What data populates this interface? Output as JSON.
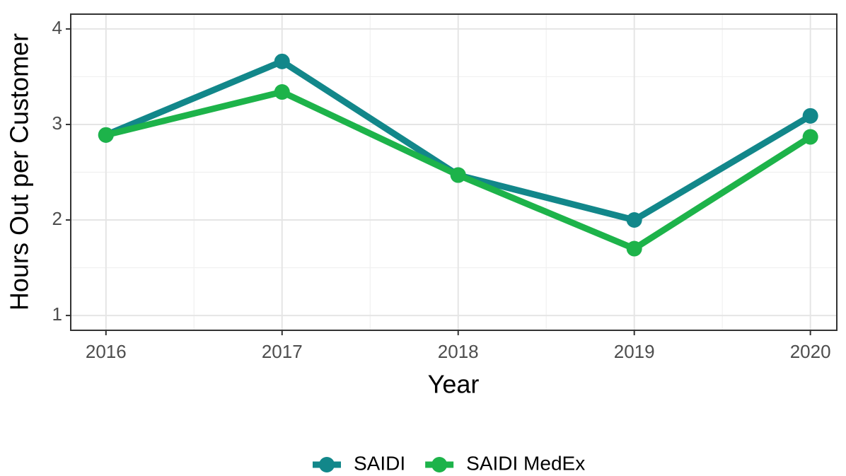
{
  "chart_data": {
    "type": "line",
    "xlabel": "Year",
    "ylabel": "Hours Out per Customer",
    "x": [
      2016,
      2017,
      2018,
      2019,
      2020
    ],
    "series": [
      {
        "name": "SAIDI",
        "color": "#12878a",
        "values": [
          2.89,
          3.66,
          2.47,
          2.0,
          3.09
        ]
      },
      {
        "name": "SAIDI MedEx",
        "color": "#1db34a",
        "values": [
          2.89,
          3.34,
          2.47,
          1.7,
          2.87
        ]
      }
    ],
    "xlim": [
      2015.8,
      2020.15
    ],
    "xticks": [
      2016,
      2017,
      2018,
      2019,
      2020
    ],
    "ylim": [
      0.845,
      4.155
    ],
    "yticks": [
      1,
      2,
      3,
      4
    ],
    "grid": true,
    "legend": "bottom"
  }
}
